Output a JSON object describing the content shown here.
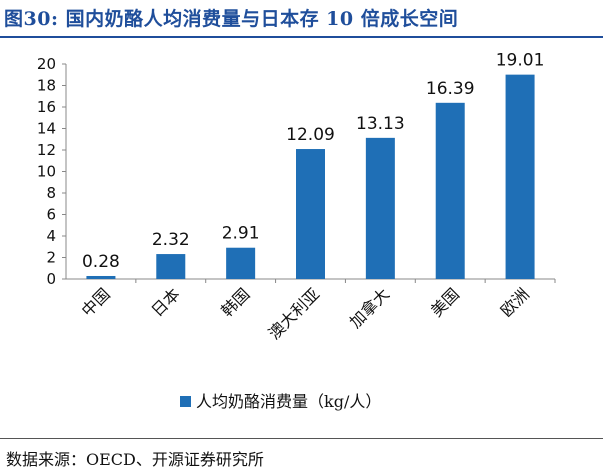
{
  "header": {
    "title": "图30:  国内奶酪人均消费量与日本存 10 倍成长空间"
  },
  "footer": {
    "source": "数据来源：OECD、开源证券研究所"
  },
  "colors": {
    "bar": "#1f6fb6",
    "title": "#1f4e9b"
  },
  "chart_data": {
    "type": "bar",
    "title": "图30:  国内奶酪人均消费量与日本存 10 倍成长空间",
    "categories": [
      "中国",
      "日本",
      "韩国",
      "澳大利亚",
      "加拿大",
      "美国",
      "欧洲"
    ],
    "series": [
      {
        "name": "人均奶酪消费量（kg/人）",
        "values": [
          0.28,
          2.32,
          2.91,
          12.09,
          13.13,
          16.39,
          19.01
        ]
      }
    ],
    "value_labels": [
      "0.28",
      "2.32",
      "2.91",
      "12.09",
      "13.13",
      "16.39",
      "19.01"
    ],
    "ylim": [
      0,
      20
    ],
    "yticks": [
      0,
      2,
      4,
      6,
      8,
      10,
      12,
      14,
      16,
      18,
      20
    ],
    "grid": false,
    "legend": "bottom"
  }
}
